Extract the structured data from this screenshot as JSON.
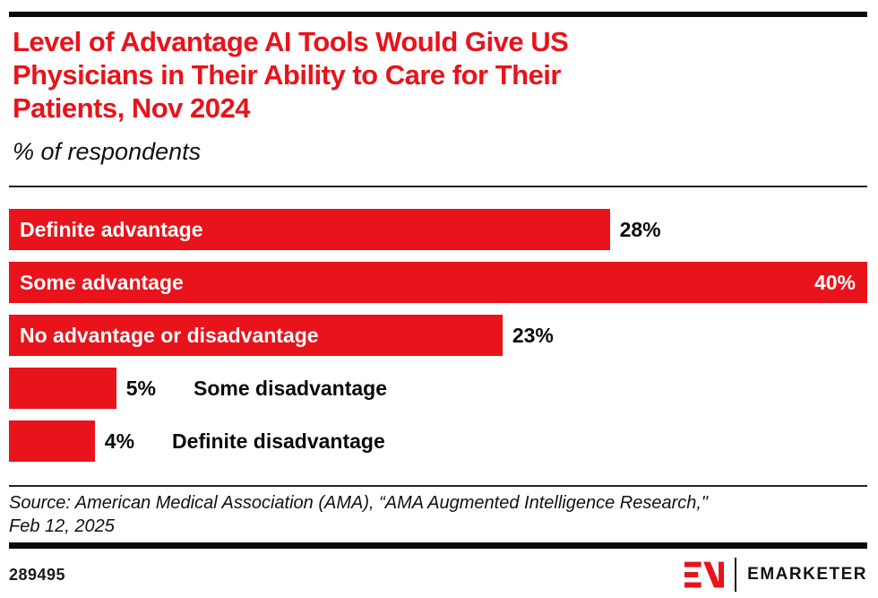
{
  "accent_color": "#e8131b",
  "header": {
    "title": "Level of Advantage AI Tools Would Give US Physicians in Their Ability to Care for Their Patients, Nov 2024",
    "title_lines": [
      "Level of Advantage AI Tools Would Give US",
      "Physicians in Their Ability to Care for Their",
      "Patients, Nov 2024"
    ],
    "subtitle": "% of respondents"
  },
  "chart_data": {
    "type": "bar",
    "orientation": "horizontal",
    "title": "Level of Advantage AI Tools Would Give US Physicians in Their Ability to Care for Their Patients, Nov 2024",
    "subtitle": "% of respondents",
    "categories": [
      "Definite advantage",
      "Some advantage",
      "No advantage or disadvantage",
      "Some disadvantage",
      "Definite disadvantage"
    ],
    "values": [
      28,
      40,
      23,
      5,
      4
    ],
    "value_labels": [
      "28%",
      "40%",
      "23%",
      "5%",
      "4%"
    ],
    "unit": "%",
    "xlim": [
      0,
      40
    ],
    "bar_color": "#e8131b",
    "grid": false,
    "legend": "none",
    "label_position": [
      "inside",
      "inside",
      "inside",
      "outside",
      "outside"
    ],
    "value_position": [
      "outside",
      "inside",
      "outside",
      "outside",
      "outside"
    ]
  },
  "footer": {
    "source": "Source: American Medical Association (AMA), “AMA Augmented Intelligence Research,\" Feb 12, 2025",
    "chart_id": "289495",
    "brand_name": "EMARKETER"
  }
}
